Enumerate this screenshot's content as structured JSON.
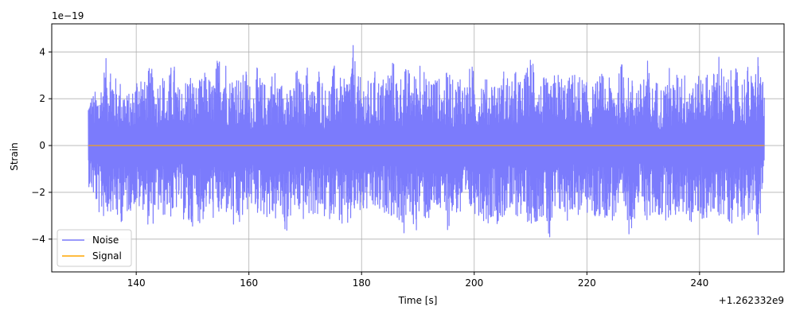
{
  "chart_data": {
    "type": "line",
    "xlabel": "Time [s]",
    "ylabel": "Strain",
    "x_offset_label": "+1.262332e9",
    "y_scale_label": "1e−19",
    "xlim": [
      125,
      255
    ],
    "ylim": [
      -5.4,
      5.2
    ],
    "x_ticks": [
      140,
      160,
      180,
      200,
      220,
      240
    ],
    "x_tick_labels": [
      "140",
      "160",
      "180",
      "200",
      "220",
      "240"
    ],
    "y_ticks": [
      -4,
      -2,
      0,
      2,
      4
    ],
    "y_tick_labels": [
      "−4",
      "−2",
      "0",
      "2",
      "4"
    ],
    "grid": true,
    "legend_position": "lower-left",
    "series": [
      {
        "name": "Noise",
        "color": "#7b7bfc",
        "x_range": [
          131.5,
          251.5
        ],
        "envelope_upper": [
          [
            131.5,
            2.4
          ],
          [
            132.5,
            2.3
          ],
          [
            133.5,
            2.6
          ],
          [
            134.5,
            3.7
          ],
          [
            135.5,
            4.0
          ],
          [
            136.5,
            2.8
          ],
          [
            137.5,
            2.9
          ],
          [
            138.5,
            2.2
          ],
          [
            139.5,
            2.5
          ],
          [
            140.5,
            3.8
          ],
          [
            141.5,
            2.8
          ],
          [
            142.5,
            3.5
          ],
          [
            143.5,
            2.7
          ],
          [
            144.5,
            3.4
          ],
          [
            145.5,
            2.6
          ],
          [
            146.5,
            3.9
          ],
          [
            147.5,
            2.5
          ],
          [
            148.5,
            2.8
          ],
          [
            149.5,
            3.4
          ],
          [
            150.5,
            2.6
          ],
          [
            151.5,
            2.9
          ],
          [
            152.5,
            3.3
          ],
          [
            153.5,
            2.7
          ],
          [
            154.5,
            3.9
          ],
          [
            155.5,
            4.6
          ],
          [
            156.5,
            2.9
          ],
          [
            157.5,
            3.6
          ],
          [
            158.5,
            2.8
          ],
          [
            159.5,
            3.4
          ],
          [
            160.5,
            2.4
          ],
          [
            161.5,
            3.4
          ],
          [
            162.5,
            2.7
          ],
          [
            163.5,
            2.9
          ],
          [
            164.5,
            3.5
          ],
          [
            165.5,
            2.6
          ],
          [
            166.5,
            3.4
          ],
          [
            167.5,
            2.3
          ],
          [
            168.5,
            3.4
          ],
          [
            169.5,
            2.5
          ],
          [
            170.5,
            3.7
          ],
          [
            171.5,
            2.4
          ],
          [
            172.5,
            3.6
          ],
          [
            173.5,
            2.5
          ],
          [
            174.5,
            2.9
          ],
          [
            175.5,
            3.8
          ],
          [
            176.5,
            2.6
          ],
          [
            177.5,
            3.2
          ],
          [
            178.5,
            4.3
          ],
          [
            179.5,
            2.9
          ],
          [
            180.5,
            3.0
          ],
          [
            181.5,
            2.7
          ],
          [
            182.5,
            3.3
          ],
          [
            183.5,
            2.8
          ],
          [
            184.5,
            3.4
          ],
          [
            185.5,
            3.8
          ],
          [
            186.5,
            2.9
          ],
          [
            187.5,
            3.4
          ],
          [
            188.5,
            3.3
          ],
          [
            189.5,
            3.1
          ],
          [
            190.5,
            4.3
          ],
          [
            191.5,
            2.8
          ],
          [
            192.5,
            3.3
          ],
          [
            193.5,
            3.0
          ],
          [
            194.5,
            2.7
          ],
          [
            195.5,
            3.5
          ],
          [
            196.5,
            2.5
          ],
          [
            197.5,
            3.5
          ],
          [
            198.5,
            2.6
          ],
          [
            199.5,
            3.7
          ],
          [
            200.5,
            2.4
          ],
          [
            201.5,
            3.3
          ],
          [
            202.5,
            2.7
          ],
          [
            203.5,
            3.1
          ],
          [
            204.5,
            2.6
          ],
          [
            205.5,
            3.6
          ],
          [
            206.5,
            2.6
          ],
          [
            207.5,
            3.4
          ],
          [
            208.5,
            2.6
          ],
          [
            209.5,
            3.5
          ],
          [
            210.5,
            4.4
          ],
          [
            211.5,
            2.7
          ],
          [
            212.5,
            3.0
          ],
          [
            213.5,
            2.5
          ],
          [
            214.5,
            3.3
          ],
          [
            215.5,
            3.1
          ],
          [
            216.5,
            2.8
          ],
          [
            217.5,
            3.2
          ],
          [
            218.5,
            3.1
          ],
          [
            219.5,
            2.9
          ],
          [
            220.5,
            2.5
          ],
          [
            221.5,
            2.7
          ],
          [
            222.5,
            3.2
          ],
          [
            223.5,
            2.8
          ],
          [
            224.5,
            3.0
          ],
          [
            225.5,
            2.9
          ],
          [
            226.5,
            4.1
          ],
          [
            227.5,
            2.8
          ],
          [
            228.5,
            3.1
          ],
          [
            229.5,
            2.7
          ],
          [
            230.5,
            4.1
          ],
          [
            231.5,
            2.6
          ],
          [
            232.5,
            2.9
          ],
          [
            233.5,
            2.5
          ],
          [
            234.5,
            3.5
          ],
          [
            235.5,
            2.7
          ],
          [
            236.5,
            3.6
          ],
          [
            237.5,
            3.1
          ],
          [
            238.5,
            3.4
          ],
          [
            239.5,
            2.7
          ],
          [
            240.5,
            3.5
          ],
          [
            241.5,
            3.1
          ],
          [
            242.5,
            3.2
          ],
          [
            243.5,
            4.3
          ],
          [
            244.5,
            2.8
          ],
          [
            245.5,
            3.2
          ],
          [
            246.5,
            3.3
          ],
          [
            247.5,
            3.0
          ],
          [
            248.5,
            3.5
          ],
          [
            249.5,
            2.9
          ],
          [
            250.5,
            4.4
          ],
          [
            251.5,
            2.1
          ]
        ],
        "envelope_lower": [
          [
            131.5,
            -1.7
          ],
          [
            132.5,
            -2.4
          ],
          [
            133.5,
            -3.1
          ],
          [
            134.5,
            -3.2
          ],
          [
            135.5,
            -2.8
          ],
          [
            136.5,
            -3.4
          ],
          [
            137.5,
            -3.3
          ],
          [
            138.5,
            -3.0
          ],
          [
            139.5,
            -2.6
          ],
          [
            140.5,
            -2.9
          ],
          [
            141.5,
            -2.7
          ],
          [
            142.5,
            -4.0
          ],
          [
            143.5,
            -2.8
          ],
          [
            144.5,
            -3.3
          ],
          [
            145.5,
            -2.9
          ],
          [
            146.5,
            -3.3
          ],
          [
            147.5,
            -2.6
          ],
          [
            148.5,
            -3.3
          ],
          [
            149.5,
            -4.0
          ],
          [
            150.5,
            -2.9
          ],
          [
            151.5,
            -3.6
          ],
          [
            152.5,
            -2.8
          ],
          [
            153.5,
            -3.2
          ],
          [
            154.5,
            -3.2
          ],
          [
            155.5,
            -3.3
          ],
          [
            156.5,
            -2.8
          ],
          [
            157.5,
            -4.2
          ],
          [
            158.5,
            -3.6
          ],
          [
            159.5,
            -2.9
          ],
          [
            160.5,
            -2.7
          ],
          [
            161.5,
            -3.0
          ],
          [
            162.5,
            -3.0
          ],
          [
            163.5,
            -3.2
          ],
          [
            164.5,
            -3.4
          ],
          [
            165.5,
            -3.0
          ],
          [
            166.5,
            -4.0
          ],
          [
            167.5,
            -3.1
          ],
          [
            168.5,
            -2.9
          ],
          [
            169.5,
            -3.3
          ],
          [
            170.5,
            -3.2
          ],
          [
            171.5,
            -3.0
          ],
          [
            172.5,
            -3.3
          ],
          [
            173.5,
            -3.2
          ],
          [
            174.5,
            -3.2
          ],
          [
            175.5,
            -2.7
          ],
          [
            176.5,
            -3.8
          ],
          [
            177.5,
            -3.8
          ],
          [
            178.5,
            -3.2
          ],
          [
            179.5,
            -3.1
          ],
          [
            180.5,
            -3.0
          ],
          [
            181.5,
            -2.9
          ],
          [
            182.5,
            -3.0
          ],
          [
            183.5,
            -3.2
          ],
          [
            184.5,
            -2.8
          ],
          [
            185.5,
            -3.2
          ],
          [
            186.5,
            -3.2
          ],
          [
            187.5,
            -4.1
          ],
          [
            188.5,
            -2.9
          ],
          [
            189.5,
            -3.9
          ],
          [
            190.5,
            -2.9
          ],
          [
            191.5,
            -3.4
          ],
          [
            192.5,
            -3.2
          ],
          [
            193.5,
            -2.9
          ],
          [
            194.5,
            -3.3
          ],
          [
            195.5,
            -3.7
          ],
          [
            196.5,
            -2.8
          ],
          [
            197.5,
            -3.3
          ],
          [
            198.5,
            -3.2
          ],
          [
            199.5,
            -3.0
          ],
          [
            200.5,
            -2.9
          ],
          [
            201.5,
            -3.2
          ],
          [
            202.5,
            -3.4
          ],
          [
            203.5,
            -3.0
          ],
          [
            204.5,
            -3.6
          ],
          [
            205.5,
            -3.0
          ],
          [
            206.5,
            -3.3
          ],
          [
            207.5,
            -3.1
          ],
          [
            208.5,
            -3.0
          ],
          [
            209.5,
            -3.3
          ],
          [
            210.5,
            -3.5
          ],
          [
            211.5,
            -3.1
          ],
          [
            212.5,
            -3.2
          ],
          [
            213.5,
            -4.8
          ],
          [
            214.5,
            -3.1
          ],
          [
            215.5,
            -3.0
          ],
          [
            216.5,
            -3.3
          ],
          [
            217.5,
            -2.8
          ],
          [
            218.5,
            -3.1
          ],
          [
            219.5,
            -2.9
          ],
          [
            220.5,
            -3.1
          ],
          [
            221.5,
            -3.3
          ],
          [
            222.5,
            -3.1
          ],
          [
            223.5,
            -3.1
          ],
          [
            224.5,
            -3.3
          ],
          [
            225.5,
            -3.2
          ],
          [
            226.5,
            -3.4
          ],
          [
            227.5,
            -3.9
          ],
          [
            228.5,
            -3.1
          ],
          [
            229.5,
            -2.6
          ],
          [
            230.5,
            -3.3
          ],
          [
            231.5,
            -3.2
          ],
          [
            232.5,
            -3.1
          ],
          [
            233.5,
            -3.3
          ],
          [
            234.5,
            -3.1
          ],
          [
            235.5,
            -3.2
          ],
          [
            236.5,
            -2.9
          ],
          [
            237.5,
            -3.1
          ],
          [
            238.5,
            -3.4
          ],
          [
            239.5,
            -3.1
          ],
          [
            240.5,
            -3.4
          ],
          [
            241.5,
            -3.0
          ],
          [
            242.5,
            -3.2
          ],
          [
            243.5,
            -3.1
          ],
          [
            244.5,
            -3.0
          ],
          [
            245.5,
            -3.4
          ],
          [
            246.5,
            -3.1
          ],
          [
            247.5,
            -3.2
          ],
          [
            248.5,
            -3.1
          ],
          [
            249.5,
            -3.2
          ],
          [
            250.5,
            -3.9
          ],
          [
            251.5,
            -1.2
          ]
        ]
      },
      {
        "name": "Signal",
        "color": "#ffa500",
        "x": [
          131.5,
          251.5
        ],
        "y": [
          0,
          0
        ]
      }
    ]
  }
}
